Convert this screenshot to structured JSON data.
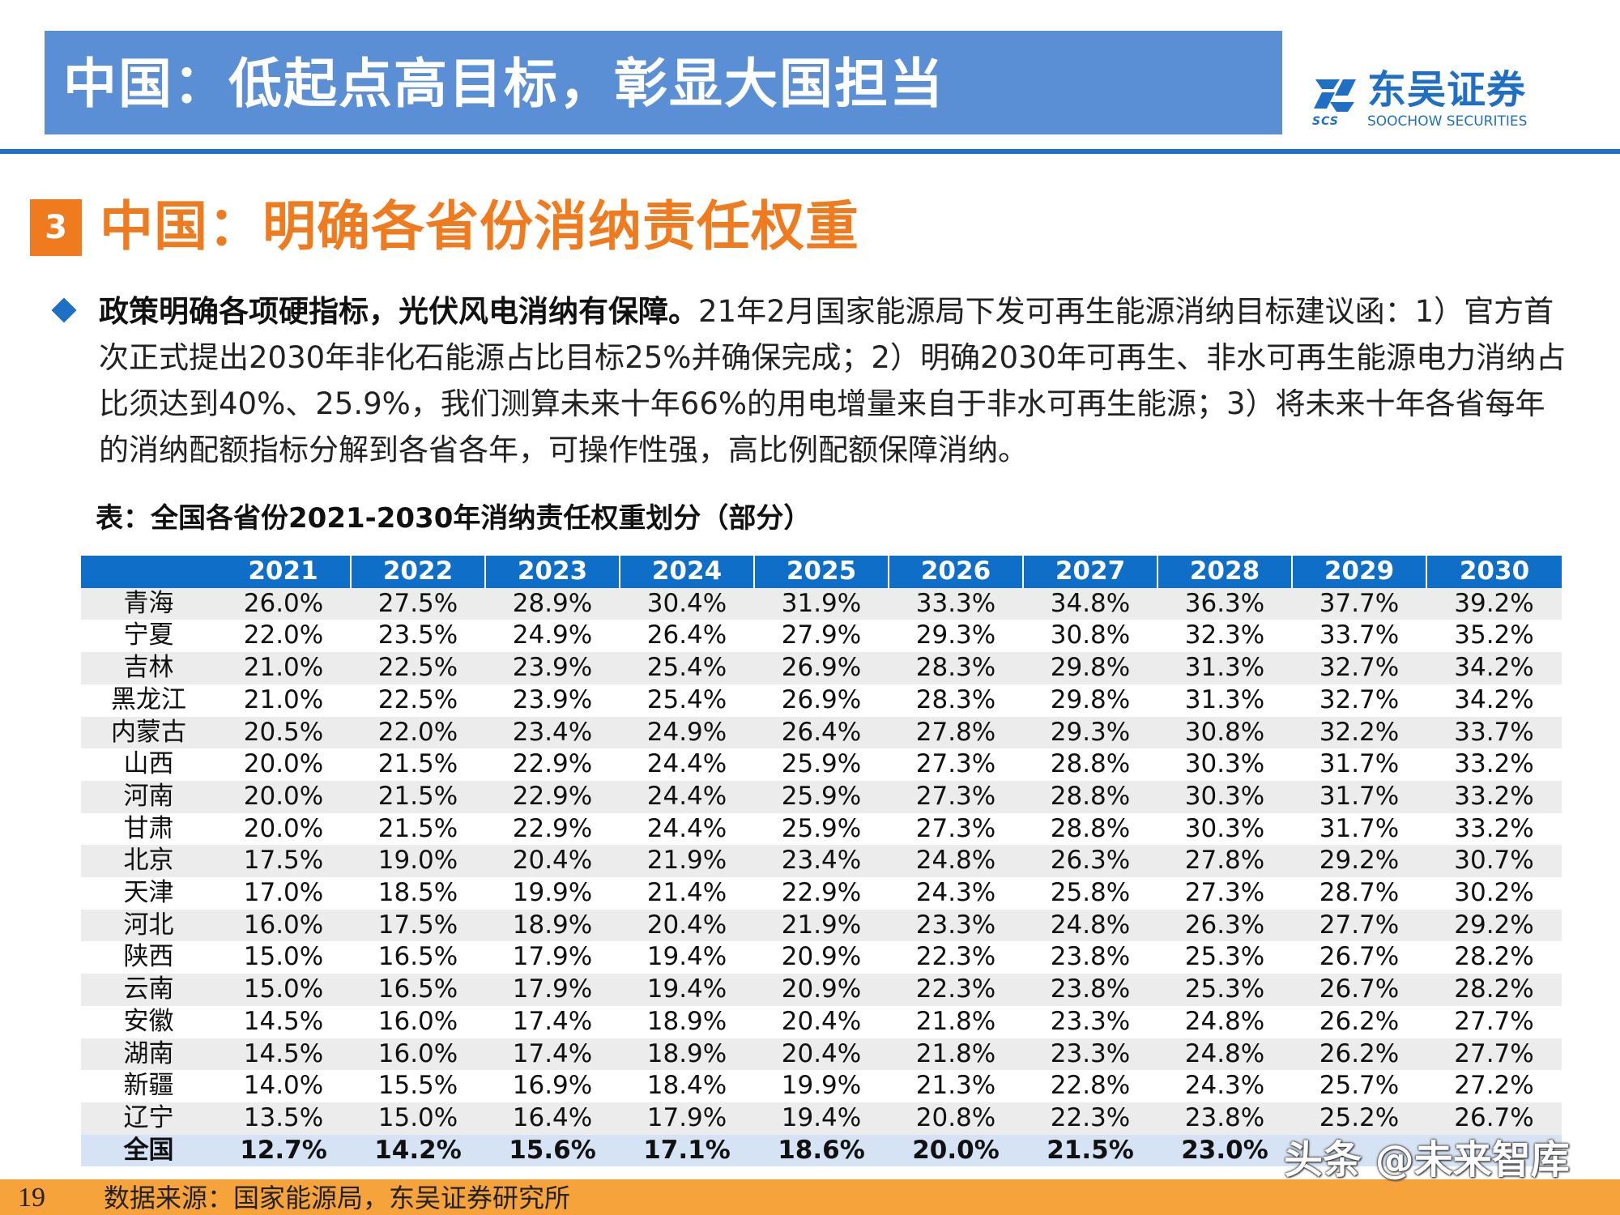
{
  "header": {
    "title": "中国：低起点高目标，彰显大国担当",
    "logo_cn": "东吴证券",
    "logo_en": "SOOCHOW SECURITIES",
    "logo_abbr": "SCS",
    "colors": {
      "bar": "#5b8fd5",
      "line": "#1f6fc4",
      "accent": "#f07b1e"
    }
  },
  "section": {
    "number": "3",
    "title": "中国：明确各省份消纳责任权重"
  },
  "bullet": {
    "icon": "diamond-bullet-icon",
    "bold": "政策明确各项硬指标，光伏风电消纳有保障。",
    "text": "21年2月国家能源局下发可再生能源消纳目标建议函：1）官方首次正式提出2030年非化石能源占比目标25%并确保完成；2）明确2030年可再生、非水可再生能源电力消纳占比须达到40%、25.9%，我们测算未来十年66%的用电增量来自于非水可再生能源；3）将未来十年各省每年的消纳配额指标分解到各省各年，可操作性强，高比例配额保障消纳。"
  },
  "table": {
    "caption": "表：全国各省份2021-2030年消纳责任权重划分（部分）",
    "corner": "",
    "years": [
      "2021",
      "2022",
      "2023",
      "2024",
      "2025",
      "2026",
      "2027",
      "2028",
      "2029",
      "2030"
    ],
    "rows": [
      {
        "name": "青海",
        "values": [
          "26.0%",
          "27.5%",
          "28.9%",
          "30.4%",
          "31.9%",
          "33.3%",
          "34.8%",
          "36.3%",
          "37.7%",
          "39.2%"
        ]
      },
      {
        "name": "宁夏",
        "values": [
          "22.0%",
          "23.5%",
          "24.9%",
          "26.4%",
          "27.9%",
          "29.3%",
          "30.8%",
          "32.3%",
          "33.7%",
          "35.2%"
        ]
      },
      {
        "name": "吉林",
        "values": [
          "21.0%",
          "22.5%",
          "23.9%",
          "25.4%",
          "26.9%",
          "28.3%",
          "29.8%",
          "31.3%",
          "32.7%",
          "34.2%"
        ]
      },
      {
        "name": "黑龙江",
        "values": [
          "21.0%",
          "22.5%",
          "23.9%",
          "25.4%",
          "26.9%",
          "28.3%",
          "29.8%",
          "31.3%",
          "32.7%",
          "34.2%"
        ]
      },
      {
        "name": "内蒙古",
        "values": [
          "20.5%",
          "22.0%",
          "23.4%",
          "24.9%",
          "26.4%",
          "27.8%",
          "29.3%",
          "30.8%",
          "32.2%",
          "33.7%"
        ]
      },
      {
        "name": "山西",
        "values": [
          "20.0%",
          "21.5%",
          "22.9%",
          "24.4%",
          "25.9%",
          "27.3%",
          "28.8%",
          "30.3%",
          "31.7%",
          "33.2%"
        ]
      },
      {
        "name": "河南",
        "values": [
          "20.0%",
          "21.5%",
          "22.9%",
          "24.4%",
          "25.9%",
          "27.3%",
          "28.8%",
          "30.3%",
          "31.7%",
          "33.2%"
        ]
      },
      {
        "name": "甘肃",
        "values": [
          "20.0%",
          "21.5%",
          "22.9%",
          "24.4%",
          "25.9%",
          "27.3%",
          "28.8%",
          "30.3%",
          "31.7%",
          "33.2%"
        ]
      },
      {
        "name": "北京",
        "values": [
          "17.5%",
          "19.0%",
          "20.4%",
          "21.9%",
          "23.4%",
          "24.8%",
          "26.3%",
          "27.8%",
          "29.2%",
          "30.7%"
        ]
      },
      {
        "name": "天津",
        "values": [
          "17.0%",
          "18.5%",
          "19.9%",
          "21.4%",
          "22.9%",
          "24.3%",
          "25.8%",
          "27.3%",
          "28.7%",
          "30.2%"
        ]
      },
      {
        "name": "河北",
        "values": [
          "16.0%",
          "17.5%",
          "18.9%",
          "20.4%",
          "21.9%",
          "23.3%",
          "24.8%",
          "26.3%",
          "27.7%",
          "29.2%"
        ]
      },
      {
        "name": "陕西",
        "values": [
          "15.0%",
          "16.5%",
          "17.9%",
          "19.4%",
          "20.9%",
          "22.3%",
          "23.8%",
          "25.3%",
          "26.7%",
          "28.2%"
        ]
      },
      {
        "name": "云南",
        "values": [
          "15.0%",
          "16.5%",
          "17.9%",
          "19.4%",
          "20.9%",
          "22.3%",
          "23.8%",
          "25.3%",
          "26.7%",
          "28.2%"
        ]
      },
      {
        "name": "安徽",
        "values": [
          "14.5%",
          "16.0%",
          "17.4%",
          "18.9%",
          "20.4%",
          "21.8%",
          "23.3%",
          "24.8%",
          "26.2%",
          "27.7%"
        ]
      },
      {
        "name": "湖南",
        "values": [
          "14.5%",
          "16.0%",
          "17.4%",
          "18.9%",
          "20.4%",
          "21.8%",
          "23.3%",
          "24.8%",
          "26.2%",
          "27.7%"
        ]
      },
      {
        "name": "新疆",
        "values": [
          "14.0%",
          "15.5%",
          "16.9%",
          "18.4%",
          "19.9%",
          "21.3%",
          "22.8%",
          "24.3%",
          "25.7%",
          "27.2%"
        ]
      },
      {
        "name": "辽宁",
        "values": [
          "13.5%",
          "15.0%",
          "16.4%",
          "17.9%",
          "19.4%",
          "20.8%",
          "22.3%",
          "23.8%",
          "25.2%",
          "26.7%"
        ]
      }
    ],
    "total": {
      "name": "全国",
      "values": [
        "12.7%",
        "14.2%",
        "15.6%",
        "17.1%",
        "18.6%",
        "20.0%",
        "21.5%",
        "23.0%",
        "",
        ""
      ]
    }
  },
  "footer": {
    "page_number": "19",
    "source": "数据来源：国家能源局，东吴证券研究所",
    "watermark": "头条 @未来智库"
  }
}
